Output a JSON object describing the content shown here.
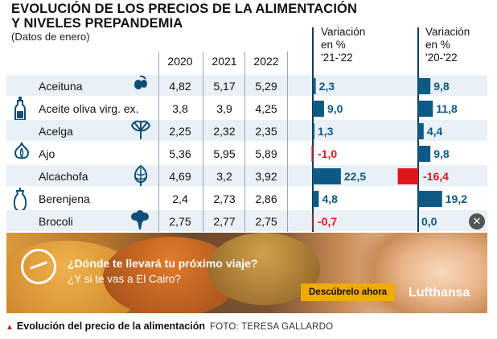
{
  "title_line1": "EVOLUCIÓN DE LOS PRECIOS DE LA ALIMENTACIÓN",
  "title_line2": "Y NIVELES PREPANDEMIA",
  "subtitle": "(Datos de enero)",
  "columns": [
    "2020",
    "2021",
    "2022"
  ],
  "var1_header": [
    "Variación",
    "en %",
    "'21-'22"
  ],
  "var2_header": [
    "Variación",
    "en %",
    "'20-'22"
  ],
  "chart_data": {
    "type": "table",
    "title": "EVOLUCIÓN DE LOS PRECIOS DE LA ALIMENTACIÓN Y NIVELES PREPANDEMIA",
    "subtitle": "(Datos de enero)",
    "columns": [
      "2020",
      "2021",
      "2022",
      "Variación en % '21-'22",
      "Variación en % '20-'22"
    ],
    "rows": [
      {
        "name": "Aceituna",
        "icon": "olive-icon",
        "y2020": "4,82",
        "y2021": "5,17",
        "y2022": "5,29",
        "var_21_22": 2.3,
        "var_21_22_label": "2,3",
        "var_20_22": 9.8,
        "var_20_22_label": "9,8"
      },
      {
        "name": "Aceite oliva virg. ex.",
        "icon": "oil-bottle-icon",
        "y2020": "3,8",
        "y2021": "3,9",
        "y2022": "4,25",
        "var_21_22": 9.0,
        "var_21_22_label": "9,0",
        "var_20_22": 11.8,
        "var_20_22_label": "11,8"
      },
      {
        "name": "Acelga",
        "icon": "chard-icon",
        "y2020": "2,25",
        "y2021": "2,32",
        "y2022": "2,35",
        "var_21_22": 1.3,
        "var_21_22_label": "1,3",
        "var_20_22": 4.4,
        "var_20_22_label": "4,4"
      },
      {
        "name": "Ajo",
        "icon": "garlic-icon",
        "y2020": "5,36",
        "y2021": "5,95",
        "y2022": "5,89",
        "var_21_22": -1.0,
        "var_21_22_label": "-1,0",
        "var_20_22": 9.8,
        "var_20_22_label": "9,8"
      },
      {
        "name": "Alcachofa",
        "icon": "artichoke-icon",
        "y2020": "4,69",
        "y2021": "3,2",
        "y2022": "3,92",
        "var_21_22": 22.5,
        "var_21_22_label": "22,5",
        "var_20_22": -16.4,
        "var_20_22_label": "-16,4"
      },
      {
        "name": "Berenjena",
        "icon": "eggplant-icon",
        "y2020": "2,4",
        "y2021": "2,73",
        "y2022": "2,86",
        "var_21_22": 4.8,
        "var_21_22_label": "4,8",
        "var_20_22": 19.2,
        "var_20_22_label": "19,2"
      },
      {
        "name": "Brocoli",
        "icon": "broccoli-icon",
        "y2020": "2,75",
        "y2021": "2,77",
        "y2022": "2,75",
        "var_21_22": -0.7,
        "var_21_22_label": "-0,7",
        "var_20_22": 0.0,
        "var_20_22_label": "0,0"
      }
    ],
    "positive_color": "#0d5a86",
    "negative_color": "#e0161d"
  },
  "ad": {
    "headline": "¿Dónde te llevará tu próximo viaje?",
    "subline": "¿Y si te vas a El Cairo?",
    "cta": "Descúbrelo ahora",
    "brand": "Lufthansa"
  },
  "close_symbol": "✕",
  "caption": {
    "marker": "▲",
    "text": "Evolución del precio de la alimentación",
    "credit": "FOTO: TERESA GALLARDO"
  }
}
